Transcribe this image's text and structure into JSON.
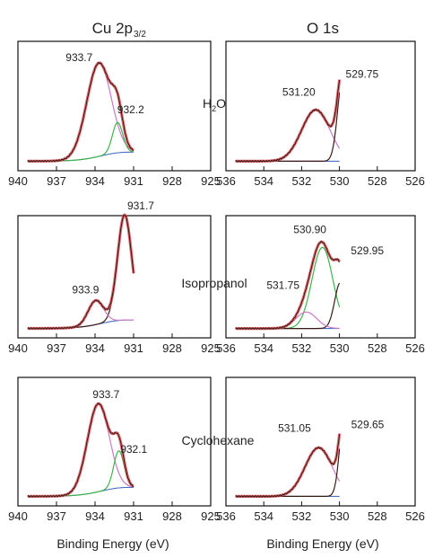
{
  "panel_titles": {
    "cu": "Cu 2p",
    "cu_sub": "3/2",
    "o": "O 1s"
  },
  "xlabel": "Binding Energy (eV)",
  "series_colors": {
    "envelope": "#d9545a",
    "measured": "#3a1a12",
    "background": "#4a6fc8",
    "component_pink": "#c77ac7",
    "component_green": "#3cb34a"
  },
  "chart_data": [
    {
      "type": "line",
      "row": 0,
      "col": 0,
      "sample_label": "H2O",
      "xlim": [
        940,
        925
      ],
      "xticks": [
        "940",
        "937",
        "934",
        "931",
        "928",
        "925"
      ],
      "peaks": [
        {
          "label": "933.7",
          "x": 933.7
        },
        {
          "label": "932.2",
          "x": 932.2
        }
      ]
    },
    {
      "type": "line",
      "row": 0,
      "col": 1,
      "sample_label": "H2O",
      "xlim": [
        536,
        526
      ],
      "xticks": [
        "536",
        "534",
        "532",
        "530",
        "528",
        "526"
      ],
      "peaks": [
        {
          "label": "531.20",
          "x": 531.2
        },
        {
          "label": "529.75",
          "x": 529.75
        }
      ]
    },
    {
      "type": "line",
      "row": 1,
      "col": 0,
      "sample_label": "Isopropanol",
      "xlim": [
        940,
        925
      ],
      "xticks": [
        "940",
        "937",
        "934",
        "931",
        "928",
        "925"
      ],
      "peaks": [
        {
          "label": "931.7",
          "x": 931.7
        },
        {
          "label": "933.9",
          "x": 933.9
        }
      ]
    },
    {
      "type": "line",
      "row": 1,
      "col": 1,
      "sample_label": "Isopropanol",
      "xlim": [
        536,
        526
      ],
      "xticks": [
        "536",
        "534",
        "532",
        "530",
        "528",
        "526"
      ],
      "peaks": [
        {
          "label": "530.90",
          "x": 530.9
        },
        {
          "label": "529.95",
          "x": 529.95
        },
        {
          "label": "531.75",
          "x": 531.75
        }
      ]
    },
    {
      "type": "line",
      "row": 2,
      "col": 0,
      "sample_label": "Cyclohexane",
      "xlim": [
        940,
        925
      ],
      "xticks": [
        "940",
        "937",
        "934",
        "931",
        "928",
        "925"
      ],
      "peaks": [
        {
          "label": "933.7",
          "x": 933.7
        },
        {
          "label": "932.1",
          "x": 932.1
        }
      ]
    },
    {
      "type": "line",
      "row": 2,
      "col": 1,
      "sample_label": "Cyclohexane",
      "xlim": [
        536,
        526
      ],
      "xticks": [
        "536",
        "534",
        "532",
        "530",
        "528",
        "526"
      ],
      "peaks": [
        {
          "label": "529.65",
          "x": 529.65
        },
        {
          "label": "531.05",
          "x": 531.05
        }
      ]
    }
  ]
}
